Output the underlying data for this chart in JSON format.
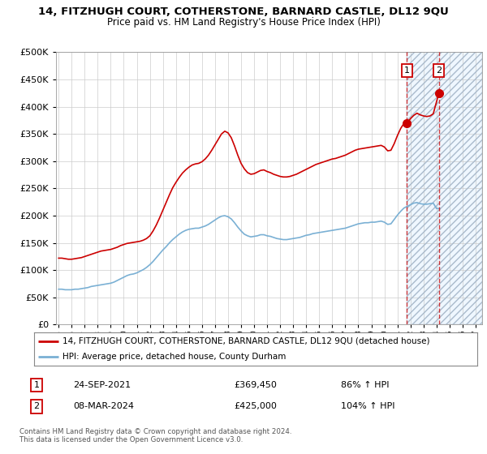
{
  "title1": "14, FITZHUGH COURT, COTHERSTONE, BARNARD CASTLE, DL12 9QU",
  "title2": "Price paid vs. HM Land Registry's House Price Index (HPI)",
  "ytick_values": [
    0,
    50000,
    100000,
    150000,
    200000,
    250000,
    300000,
    350000,
    400000,
    450000,
    500000
  ],
  "ylim": [
    0,
    500000
  ],
  "xlim_start": 1994.8,
  "xlim_end": 2027.5,
  "hpi_line_color": "#cc0000",
  "avg_line_color": "#7ab0d4",
  "sale1_date_num": 2021.73,
  "sale2_date_num": 2024.18,
  "sale1_price": 369450,
  "sale2_price": 425000,
  "sale1_label": "1",
  "sale2_label": "2",
  "sale1_date_str": "24-SEP-2021",
  "sale1_pct": "86% ↑ HPI",
  "sale2_date_str": "08-MAR-2024",
  "sale2_pct": "104% ↑ HPI",
  "legend_line1": "14, FITZHUGH COURT, COTHERSTONE, BARNARD CASTLE, DL12 9QU (detached house)",
  "legend_line2": "HPI: Average price, detached house, County Durham",
  "footer": "Contains HM Land Registry data © Crown copyright and database right 2024.\nThis data is licensed under the Open Government Licence v3.0.",
  "hatch_start": 2021.73,
  "hatch_end": 2027.5,
  "background_color": "#ffffff",
  "hpi_property_data": {
    "years": [
      1995.0,
      1995.25,
      1995.5,
      1995.75,
      1996.0,
      1996.25,
      1996.5,
      1996.75,
      1997.0,
      1997.25,
      1997.5,
      1997.75,
      1998.0,
      1998.25,
      1998.5,
      1998.75,
      1999.0,
      1999.25,
      1999.5,
      1999.75,
      2000.0,
      2000.25,
      2000.5,
      2000.75,
      2001.0,
      2001.25,
      2001.5,
      2001.75,
      2002.0,
      2002.25,
      2002.5,
      2002.75,
      2003.0,
      2003.25,
      2003.5,
      2003.75,
      2004.0,
      2004.25,
      2004.5,
      2004.75,
      2005.0,
      2005.25,
      2005.5,
      2005.75,
      2006.0,
      2006.25,
      2006.5,
      2006.75,
      2007.0,
      2007.25,
      2007.5,
      2007.75,
      2008.0,
      2008.25,
      2008.5,
      2008.75,
      2009.0,
      2009.25,
      2009.5,
      2009.75,
      2010.0,
      2010.25,
      2010.5,
      2010.75,
      2011.0,
      2011.25,
      2011.5,
      2011.75,
      2012.0,
      2012.25,
      2012.5,
      2012.75,
      2013.0,
      2013.25,
      2013.5,
      2013.75,
      2014.0,
      2014.25,
      2014.5,
      2014.75,
      2015.0,
      2015.25,
      2015.5,
      2015.75,
      2016.0,
      2016.25,
      2016.5,
      2016.75,
      2017.0,
      2017.25,
      2017.5,
      2017.75,
      2018.0,
      2018.25,
      2018.5,
      2018.75,
      2019.0,
      2019.25,
      2019.5,
      2019.75,
      2020.0,
      2020.25,
      2020.5,
      2020.75,
      2021.0,
      2021.25,
      2021.5,
      2021.73,
      2022.0,
      2022.25,
      2022.5,
      2022.75,
      2023.0,
      2023.25,
      2023.5,
      2023.75,
      2024.18
    ],
    "values": [
      122000,
      122000,
      121000,
      120000,
      120000,
      121000,
      122000,
      123000,
      125000,
      127000,
      129000,
      131000,
      133000,
      135000,
      136000,
      137000,
      138000,
      140000,
      142000,
      145000,
      147000,
      149000,
      150000,
      151000,
      152000,
      153000,
      155000,
      158000,
      163000,
      172000,
      183000,
      196000,
      210000,
      224000,
      238000,
      251000,
      261000,
      270000,
      278000,
      284000,
      289000,
      293000,
      295000,
      296000,
      299000,
      304000,
      311000,
      320000,
      330000,
      340000,
      350000,
      355000,
      352000,
      343000,
      328000,
      311000,
      296000,
      286000,
      279000,
      276000,
      277000,
      280000,
      283000,
      284000,
      281000,
      279000,
      276000,
      274000,
      272000,
      271000,
      271000,
      272000,
      274000,
      276000,
      279000,
      282000,
      285000,
      288000,
      291000,
      294000,
      296000,
      298000,
      300000,
      302000,
      304000,
      305000,
      307000,
      309000,
      311000,
      314000,
      317000,
      320000,
      322000,
      323000,
      324000,
      325000,
      326000,
      327000,
      328000,
      329000,
      326000,
      319000,
      320000,
      332000,
      347000,
      360000,
      369450,
      369450,
      378000,
      384000,
      388000,
      385000,
      383000,
      382000,
      383000,
      387000,
      425000
    ]
  },
  "hpi_avg_data": {
    "years": [
      1995.0,
      1995.25,
      1995.5,
      1995.75,
      1996.0,
      1996.25,
      1996.5,
      1996.75,
      1997.0,
      1997.25,
      1997.5,
      1997.75,
      1998.0,
      1998.25,
      1998.5,
      1998.75,
      1999.0,
      1999.25,
      1999.5,
      1999.75,
      2000.0,
      2000.25,
      2000.5,
      2000.75,
      2001.0,
      2001.25,
      2001.5,
      2001.75,
      2002.0,
      2002.25,
      2002.5,
      2002.75,
      2003.0,
      2003.25,
      2003.5,
      2003.75,
      2004.0,
      2004.25,
      2004.5,
      2004.75,
      2005.0,
      2005.25,
      2005.5,
      2005.75,
      2006.0,
      2006.25,
      2006.5,
      2006.75,
      2007.0,
      2007.25,
      2007.5,
      2007.75,
      2008.0,
      2008.25,
      2008.5,
      2008.75,
      2009.0,
      2009.25,
      2009.5,
      2009.75,
      2010.0,
      2010.25,
      2010.5,
      2010.75,
      2011.0,
      2011.25,
      2011.5,
      2011.75,
      2012.0,
      2012.25,
      2012.5,
      2012.75,
      2013.0,
      2013.25,
      2013.5,
      2013.75,
      2014.0,
      2014.25,
      2014.5,
      2014.75,
      2015.0,
      2015.25,
      2015.5,
      2015.75,
      2016.0,
      2016.25,
      2016.5,
      2016.75,
      2017.0,
      2017.25,
      2017.5,
      2017.75,
      2018.0,
      2018.25,
      2018.5,
      2018.75,
      2019.0,
      2019.25,
      2019.5,
      2019.75,
      2020.0,
      2020.25,
      2020.5,
      2020.75,
      2021.0,
      2021.25,
      2021.5,
      2021.75,
      2022.0,
      2022.25,
      2022.5,
      2022.75,
      2023.0,
      2023.25,
      2023.5,
      2023.75,
      2024.0,
      2024.25
    ],
    "values": [
      65000,
      65000,
      64000,
      64000,
      64000,
      65000,
      65000,
      66000,
      67000,
      68000,
      70000,
      71000,
      72000,
      73000,
      74000,
      75000,
      76000,
      78000,
      81000,
      84000,
      87000,
      90000,
      92000,
      93000,
      95000,
      98000,
      101000,
      105000,
      110000,
      116000,
      123000,
      130000,
      137000,
      143000,
      150000,
      156000,
      161000,
      166000,
      170000,
      173000,
      175000,
      176000,
      177000,
      177000,
      179000,
      181000,
      184000,
      188000,
      192000,
      196000,
      199000,
      200000,
      198000,
      194000,
      187000,
      179000,
      172000,
      166000,
      163000,
      161000,
      162000,
      163000,
      165000,
      165000,
      163000,
      162000,
      160000,
      158000,
      157000,
      156000,
      156000,
      157000,
      158000,
      159000,
      160000,
      162000,
      164000,
      165000,
      167000,
      168000,
      169000,
      170000,
      171000,
      172000,
      173000,
      174000,
      175000,
      176000,
      177000,
      179000,
      181000,
      183000,
      185000,
      186000,
      187000,
      187000,
      188000,
      188000,
      189000,
      190000,
      188000,
      184000,
      185000,
      193000,
      201000,
      208000,
      214000,
      217000,
      220000,
      223000,
      224000,
      222000,
      221000,
      221000,
      222000,
      223000,
      213000,
      213000
    ]
  }
}
